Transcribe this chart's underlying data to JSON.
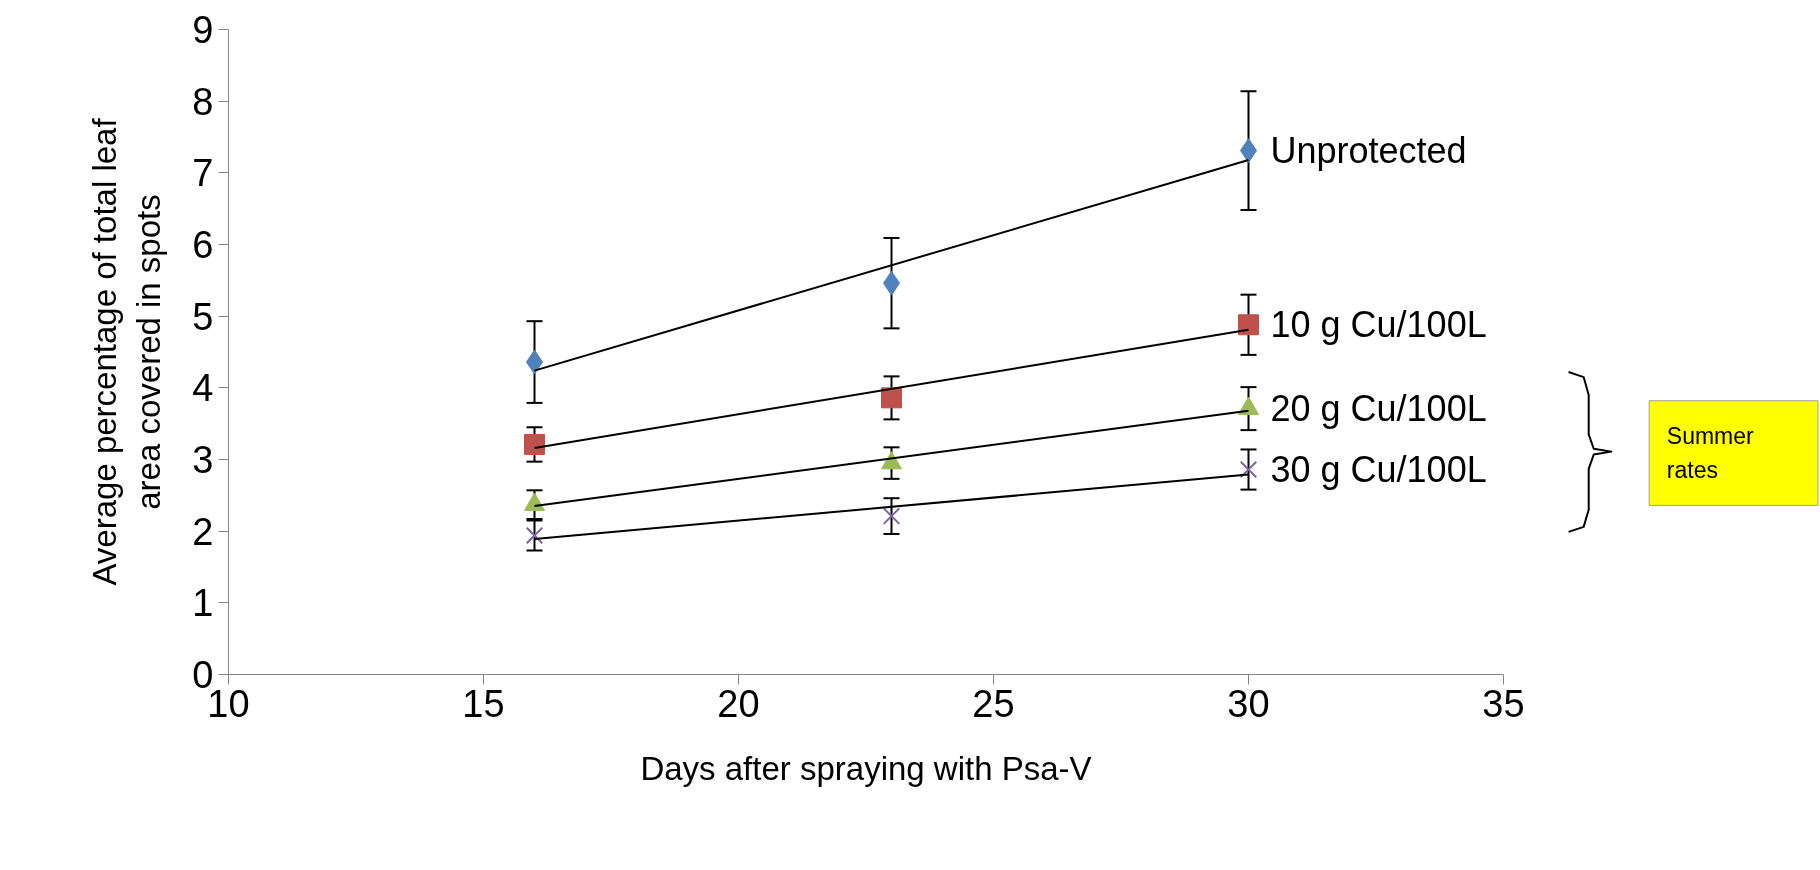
{
  "chart_data": {
    "type": "scatter",
    "xlabel": "Days after spraying with Psa-V",
    "ylabel": "Average percentage of total leaf\narea covered in spots",
    "xlim": [
      10,
      35
    ],
    "xticks": [
      10,
      15,
      20,
      25,
      30,
      35
    ],
    "ylim": [
      0,
      9
    ],
    "yticks": [
      0,
      1,
      2,
      3,
      4,
      5,
      6,
      7,
      8,
      9
    ],
    "grid": false,
    "series": [
      {
        "name": "Unprotected",
        "color": "#4f81bd",
        "marker": "diamond",
        "x": [
          16,
          23,
          30
        ],
        "values": [
          4.36,
          5.46,
          7.31
        ],
        "errors": [
          0.57,
          0.63,
          0.83
        ]
      },
      {
        "name": "10 g Cu/100L",
        "color": "#c0504d",
        "marker": "square",
        "x": [
          16,
          23,
          30
        ],
        "values": [
          3.21,
          3.86,
          4.88
        ],
        "errors": [
          0.24,
          0.3,
          0.42
        ]
      },
      {
        "name": "20 g Cu/100L",
        "color": "#9bbb59",
        "marker": "triangle",
        "x": [
          16,
          23,
          30
        ],
        "values": [
          2.37,
          2.95,
          3.71
        ],
        "errors": [
          0.2,
          0.22,
          0.3
        ]
      },
      {
        "name": "30 g Cu/100L",
        "color": "#8064a2",
        "marker": "cross",
        "x": [
          16,
          23,
          30
        ],
        "values": [
          1.94,
          2.21,
          2.86
        ],
        "errors": [
          0.21,
          0.25,
          0.28
        ]
      },
      {
        "type": "line",
        "color": "#000000",
        "marker": "none",
        "x": [
          16,
          30
        ],
        "values": [
          4.24,
          7.18
        ]
      },
      {
        "type": "line",
        "color": "#000000",
        "marker": "none",
        "x": [
          16,
          30
        ],
        "values": [
          3.16,
          4.81
        ]
      },
      {
        "type": "line",
        "color": "#000000",
        "marker": "none",
        "x": [
          16,
          30
        ],
        "values": [
          2.35,
          3.68
        ]
      },
      {
        "type": "line",
        "color": "#000000",
        "marker": "none",
        "x": [
          16,
          30
        ],
        "values": [
          1.89,
          2.79
        ]
      }
    ],
    "annotations": [
      "Summer rates"
    ]
  }
}
